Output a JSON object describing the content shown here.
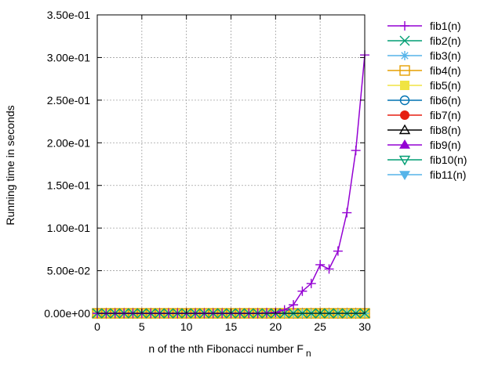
{
  "chart_data": {
    "type": "line",
    "title": "",
    "xlabel": "n of the nth Fibonacci number F",
    "xlabel_subscript": "n",
    "ylabel": "Running time in seconds",
    "xlim": [
      0,
      30
    ],
    "ylim": [
      0,
      0.35
    ],
    "xticks": [
      0,
      5,
      10,
      15,
      20,
      25,
      30
    ],
    "yticks": [
      0,
      0.05,
      0.1,
      0.15,
      0.2,
      0.25,
      0.3,
      0.35
    ],
    "ytick_labels": [
      "0.00e+00",
      "5.00e-02",
      "1.00e-01",
      "1.50e-01",
      "2.00e-01",
      "2.50e-01",
      "3.00e-01",
      "3.50e-01"
    ],
    "grid": true,
    "legend_position": "outside-right",
    "x": [
      0,
      1,
      2,
      3,
      4,
      5,
      6,
      7,
      8,
      9,
      10,
      11,
      12,
      13,
      14,
      15,
      16,
      17,
      18,
      19,
      20,
      21,
      22,
      23,
      24,
      25,
      26,
      27,
      28,
      29,
      30
    ],
    "series": [
      {
        "name": "fib1(n)",
        "color": "#9400d3",
        "marker": "plus",
        "values": [
          0,
          0,
          0,
          0,
          0,
          0,
          0,
          0,
          0,
          0,
          0,
          0,
          0,
          0,
          0,
          0,
          0,
          0,
          0,
          0.0005,
          0.001,
          0.004,
          0.01,
          0.026,
          0.035,
          0.057,
          0.052,
          0.073,
          0.118,
          0.191,
          0.303
        ]
      },
      {
        "name": "fib2(n)",
        "color": "#009e73",
        "marker": "cross",
        "values": [
          0,
          0,
          0,
          0,
          0,
          0,
          0,
          0,
          0,
          0,
          0,
          0,
          0,
          0,
          0,
          0,
          0,
          0,
          0,
          0,
          0,
          0,
          0,
          0,
          0,
          0,
          0,
          0,
          0,
          0,
          0
        ]
      },
      {
        "name": "fib3(n)",
        "color": "#56b4e9",
        "marker": "star",
        "values": [
          0,
          0,
          0,
          0,
          0,
          0,
          0,
          0,
          0,
          0,
          0,
          0,
          0,
          0,
          0,
          0,
          0,
          0,
          0,
          0,
          0,
          0,
          0,
          0,
          0,
          0,
          0,
          0,
          0,
          0,
          0
        ]
      },
      {
        "name": "fib4(n)",
        "color": "#e69f00",
        "marker": "box",
        "values": [
          0,
          0,
          0,
          0,
          0,
          0,
          0,
          0,
          0,
          0,
          0,
          0,
          0,
          0,
          0,
          0,
          0,
          0,
          0,
          0,
          0,
          0,
          0,
          0,
          0,
          0,
          0,
          0,
          0,
          0,
          0
        ]
      },
      {
        "name": "fib5(n)",
        "color": "#f0e442",
        "marker": "filled-box",
        "values": [
          0,
          0,
          0,
          0,
          0,
          0,
          0,
          0,
          0,
          0,
          0,
          0,
          0,
          0,
          0,
          0,
          0,
          0,
          0,
          0,
          0,
          0,
          0,
          0,
          0,
          0,
          0,
          0,
          0,
          0,
          0
        ]
      },
      {
        "name": "fib6(n)",
        "color": "#0072b2",
        "marker": "circle",
        "values": [
          0,
          0,
          0,
          0,
          0,
          0,
          0,
          0,
          0,
          0,
          0,
          0,
          0,
          0,
          0,
          0,
          0,
          0,
          0,
          0,
          0,
          0,
          0,
          0,
          0,
          0,
          0,
          0,
          0,
          0,
          0
        ]
      },
      {
        "name": "fib7(n)",
        "color": "#e51e10",
        "marker": "filled-circle",
        "values": [
          0,
          0,
          0,
          0,
          0,
          0,
          0,
          0,
          0,
          0,
          0,
          0,
          0,
          0,
          0,
          0,
          0,
          0,
          0,
          0,
          0,
          0,
          0,
          0,
          0,
          0,
          0,
          0,
          0,
          0,
          0
        ]
      },
      {
        "name": "fib8(n)",
        "color": "#000000",
        "marker": "triangle",
        "values": [
          0,
          0,
          0,
          0,
          0,
          0,
          0,
          0,
          0,
          0,
          0,
          0,
          0,
          0,
          0,
          0,
          0,
          0,
          0,
          0,
          0,
          0,
          0,
          0,
          0,
          0,
          0,
          0,
          0,
          0,
          0
        ]
      },
      {
        "name": "fib9(n)",
        "color": "#9400d3",
        "marker": "filled-triangle",
        "values": [
          0,
          0,
          0,
          0,
          0,
          0,
          0,
          0,
          0,
          0,
          0,
          0,
          0,
          0,
          0,
          0,
          0,
          0,
          0,
          0,
          0,
          0,
          0,
          0,
          0,
          0,
          0,
          0,
          0,
          0,
          0
        ]
      },
      {
        "name": "fib10(n)",
        "color": "#009e73",
        "marker": "inverted-triangle",
        "values": [
          0,
          0,
          0,
          0,
          0,
          0,
          0,
          0,
          0,
          0,
          0,
          0,
          0,
          0,
          0,
          0,
          0,
          0,
          0,
          0,
          0,
          0,
          0,
          0,
          0,
          0,
          0,
          0,
          0,
          0,
          0
        ]
      },
      {
        "name": "fib11(n)",
        "color": "#56b4e9",
        "marker": "filled-inverted-triangle",
        "values": [
          0,
          0,
          0,
          0,
          0,
          0,
          0,
          0,
          0,
          0,
          0,
          0,
          0,
          0,
          0,
          0,
          0,
          0,
          0,
          0,
          0,
          0,
          0,
          0,
          0,
          0,
          0,
          0,
          0,
          0,
          0
        ]
      }
    ]
  }
}
